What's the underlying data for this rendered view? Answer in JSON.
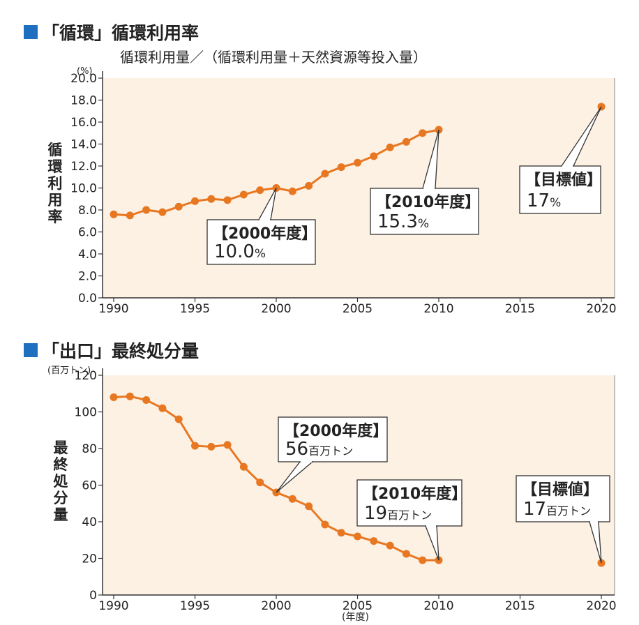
{
  "section1": {
    "title": "「循環」循環利用率",
    "subtitle": "循環利用量／（循環利用量＋天然資源等投入量）"
  },
  "section2": {
    "title": "「出口」最終処分量",
    "x_unit": "(年度)"
  },
  "colors": {
    "series": "#e87722",
    "plot_bg": "#fdf1e4",
    "title_square": "#1f6fc0"
  },
  "chart_data": [
    {
      "type": "line",
      "ylabel": "循環利用率",
      "y_unit": "(%)",
      "ylim": [
        0,
        20
      ],
      "yticks": [
        "0.0",
        "2.0",
        "4.0",
        "6.0",
        "8.0",
        "10.0",
        "12.0",
        "14.0",
        "16.0",
        "18.0",
        "20.0"
      ],
      "xlim": [
        1990,
        2020
      ],
      "xticks": [
        "1990",
        "1995",
        "2000",
        "2005",
        "2010",
        "2015",
        "2020"
      ],
      "series": [
        {
          "x": [
            1990,
            1991,
            1992,
            1993,
            1994,
            1995,
            1996,
            1997,
            1998,
            1999,
            2000,
            2001,
            2002,
            2003,
            2004,
            2005,
            2006,
            2007,
            2008,
            2009,
            2010
          ],
          "values": [
            7.6,
            7.5,
            8.0,
            7.8,
            8.3,
            8.8,
            9.0,
            8.9,
            9.4,
            9.8,
            10.0,
            9.7,
            10.2,
            11.3,
            11.9,
            12.3,
            12.9,
            13.7,
            14.2,
            15.0,
            15.3
          ]
        },
        {
          "x": [
            2020
          ],
          "values": [
            17.4
          ]
        }
      ],
      "annotations": [
        {
          "title": "【2000年度】",
          "value": "10.0",
          "unit": "%"
        },
        {
          "title": "【2010年度】",
          "value": "15.3",
          "unit": "%"
        },
        {
          "title": "【目標値】",
          "value": "17",
          "unit": "%"
        }
      ]
    },
    {
      "type": "line",
      "ylabel": "最終処分量",
      "y_unit": "(百万トン)",
      "ylim": [
        0,
        120
      ],
      "yticks": [
        "0",
        "20",
        "40",
        "60",
        "80",
        "100",
        "120"
      ],
      "xlim": [
        1990,
        2020
      ],
      "xticks": [
        "1990",
        "1995",
        "2000",
        "2005",
        "2010",
        "2015",
        "2020"
      ],
      "series": [
        {
          "x": [
            1990,
            1991,
            1992,
            1993,
            1994,
            1995,
            1996,
            1997,
            1998,
            1999,
            2000,
            2001,
            2002,
            2003,
            2004,
            2005,
            2006,
            2007,
            2008,
            2009,
            2010
          ],
          "values": [
            108,
            108.5,
            106.5,
            102,
            96,
            81.5,
            81,
            82,
            70,
            61.5,
            56,
            52.5,
            48.5,
            38.5,
            34,
            32,
            29.5,
            27,
            22.5,
            19,
            19
          ]
        },
        {
          "x": [
            2020
          ],
          "values": [
            17.5
          ]
        }
      ],
      "annotations": [
        {
          "title": "【2000年度】",
          "value": "56",
          "unit": "百万トン"
        },
        {
          "title": "【2010年度】",
          "value": "19",
          "unit": "百万トン"
        },
        {
          "title": "【目標値】",
          "value": "17",
          "unit": "百万トン"
        }
      ]
    }
  ]
}
